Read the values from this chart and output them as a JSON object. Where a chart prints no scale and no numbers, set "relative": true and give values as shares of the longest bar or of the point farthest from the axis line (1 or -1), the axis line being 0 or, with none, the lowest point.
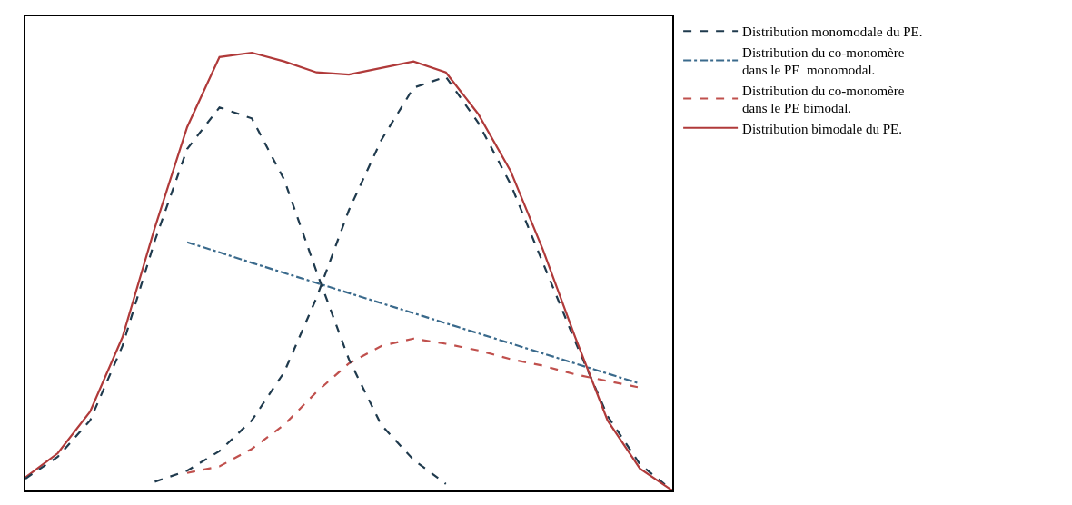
{
  "chart_data": {
    "type": "line",
    "relative": true,
    "legend": "right",
    "marker": "none",
    "categories": [
      null,
      null,
      null,
      null,
      null,
      null,
      null,
      null,
      null,
      null,
      null,
      null,
      null,
      null,
      null,
      null,
      null,
      null,
      null,
      null,
      null
    ],
    "series": [
      {
        "name": "Distribution monomodale du PE.",
        "color": "#1f3a4d",
        "line_style": "dashed",
        "values": [
          null,
          null,
          null,
          null,
          0.02,
          0.045,
          0.09,
          0.16,
          0.27,
          0.44,
          0.64,
          0.8,
          0.92,
          0.945,
          0.84,
          0.7,
          0.52,
          0.34,
          0.17,
          0.06,
          0.0
        ]
      },
      {
        "name": "Distribution du co-monomère dans le PE  monomodal.",
        "color": "#3a6a8c",
        "line_style": "dashdot",
        "values": [
          null,
          null,
          null,
          null,
          null,
          0.567,
          0.544,
          0.52,
          0.497,
          0.474,
          0.451,
          0.428,
          0.405,
          0.382,
          0.359,
          0.336,
          0.313,
          0.29,
          0.267,
          0.244,
          null
        ]
      },
      {
        "name": "Distribution du co-monomère  dans le PE bimodal.",
        "color": "#c0504d",
        "line_style": "dashed",
        "values": [
          null,
          null,
          null,
          null,
          null,
          0.04,
          0.055,
          0.095,
          0.15,
          0.225,
          0.29,
          0.33,
          0.347,
          0.335,
          0.32,
          0.3,
          0.285,
          0.265,
          0.25,
          0.235,
          null
        ]
      },
      {
        "name": "Distribution bimodale du PE.",
        "color": "#b03a3a",
        "line_style": "solid",
        "values": [
          0.03,
          0.085,
          0.18,
          0.35,
          0.6,
          0.83,
          0.99,
          1.0,
          0.98,
          0.955,
          0.95,
          0.965,
          0.98,
          0.955,
          0.86,
          0.73,
          0.55,
          0.35,
          0.16,
          0.05,
          0.0
        ]
      },
      {
        "color": "#1f3a4d",
        "line_style": "dashed",
        "values": [
          0.027,
          0.077,
          0.16,
          0.33,
          0.57,
          0.78,
          0.875,
          0.85,
          0.71,
          0.5,
          0.3,
          0.15,
          0.07,
          0.015,
          null,
          null,
          null,
          null,
          null,
          null,
          null
        ]
      }
    ]
  }
}
